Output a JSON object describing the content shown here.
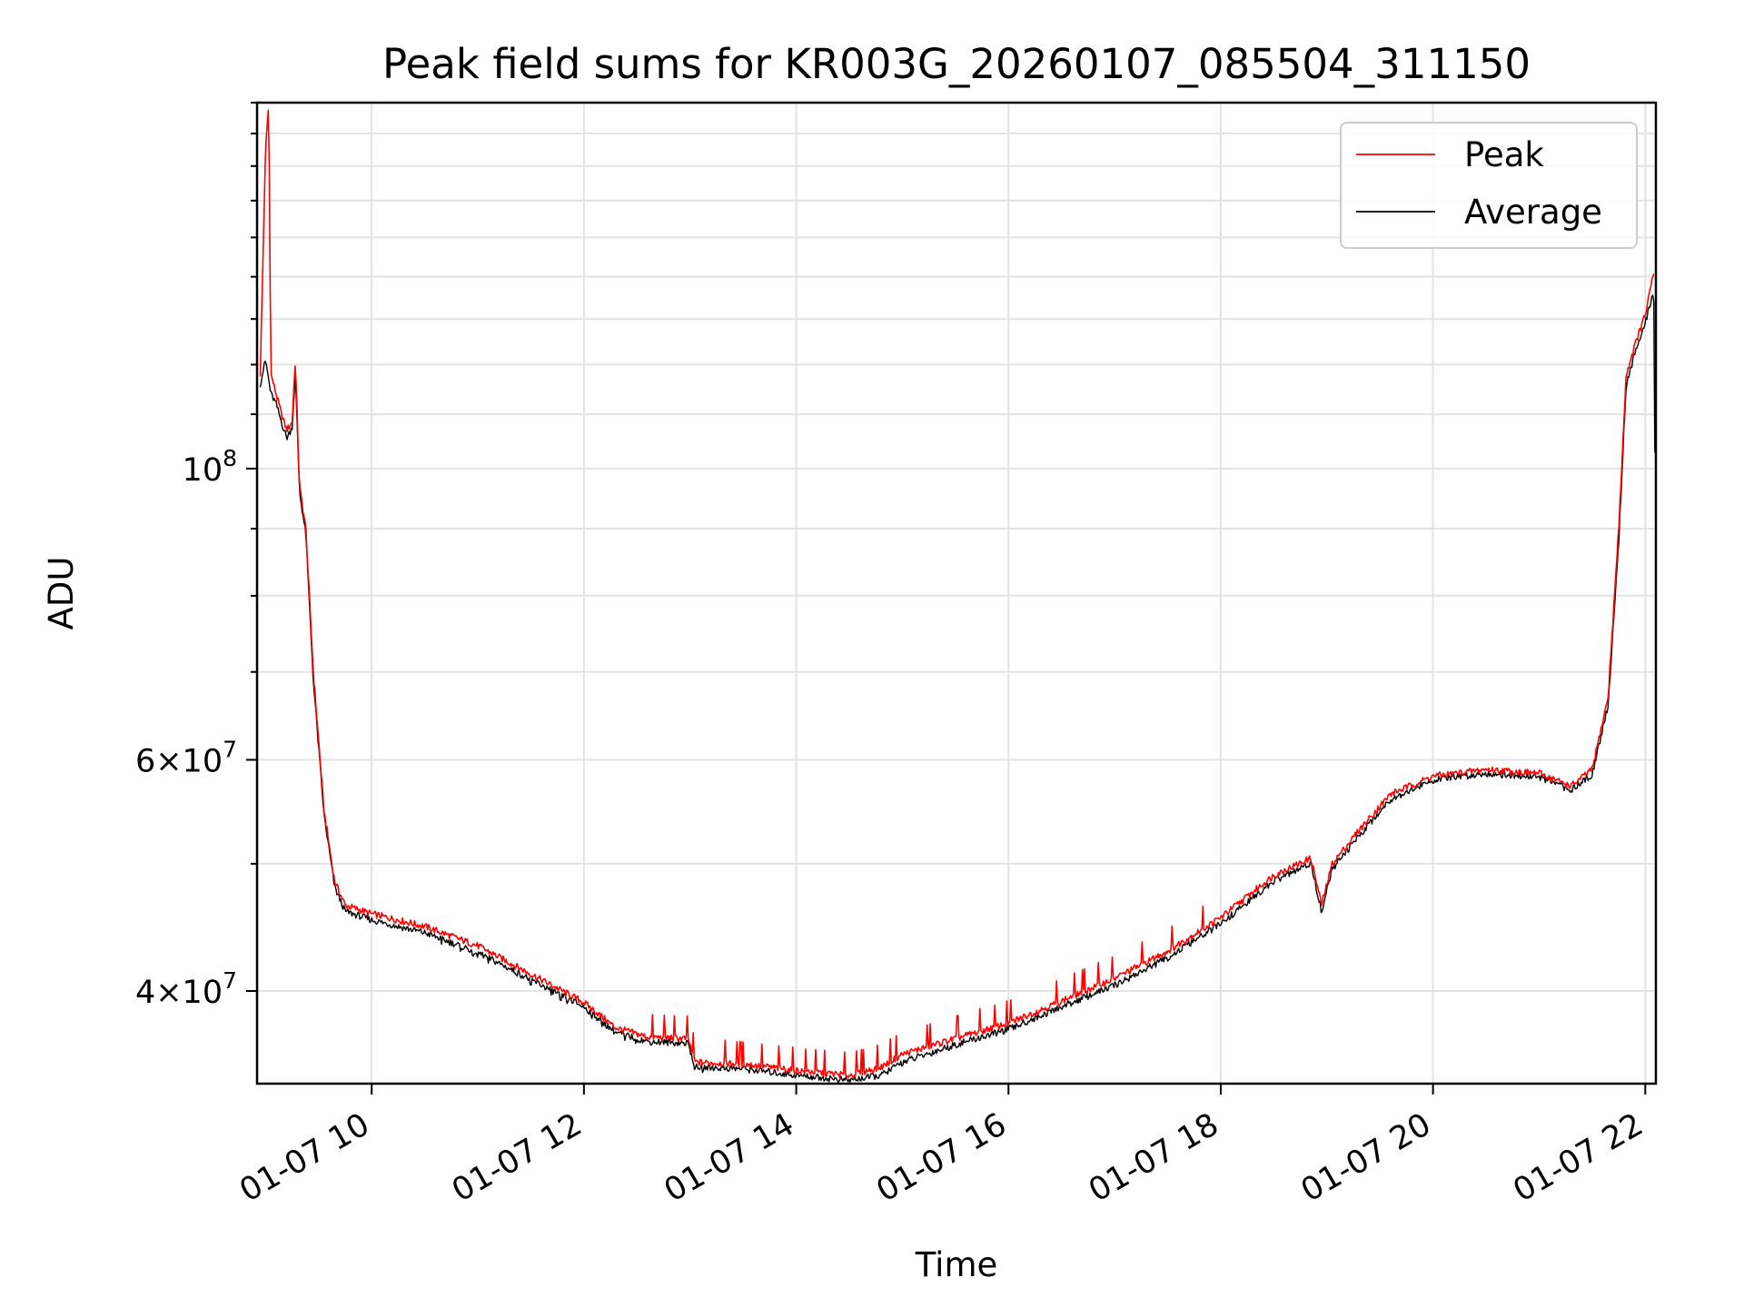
{
  "chart_data": {
    "type": "line",
    "title": "Peak field sums for KR003G_20260107_085504_311150",
    "xlabel": "Time",
    "ylabel": "ADU",
    "yscale": "log",
    "grid": true,
    "legend_position": "top-right",
    "xlim_hours": [
      8.92,
      22.1
    ],
    "ylim": [
      34000000,
      190000000
    ],
    "x_ticks": [
      {
        "hour": 10,
        "label": "01-07 10"
      },
      {
        "hour": 12,
        "label": "01-07 12"
      },
      {
        "hour": 14,
        "label": "01-07 14"
      },
      {
        "hour": 16,
        "label": "01-07 16"
      },
      {
        "hour": 18,
        "label": "01-07 18"
      },
      {
        "hour": 20,
        "label": "01-07 20"
      },
      {
        "hour": 22,
        "label": "01-07 22"
      }
    ],
    "y_ticks": [
      {
        "value": 40000000,
        "mantissa": "4",
        "exponent": "7"
      },
      {
        "value": 60000000,
        "mantissa": "6",
        "exponent": "7"
      },
      {
        "value": 100000000,
        "mantissa": "",
        "exponent": "8"
      }
    ],
    "series": [
      {
        "name": "Peak",
        "color": "#ff0000",
        "points": [
          [
            8.95,
            118000000
          ],
          [
            9.0,
            175000000
          ],
          [
            9.03,
            190000000
          ],
          [
            9.05,
            118000000
          ],
          [
            9.1,
            114000000
          ],
          [
            9.15,
            110000000
          ],
          [
            9.2,
            107000000
          ],
          [
            9.25,
            108500000
          ],
          [
            9.28,
            121000000
          ],
          [
            9.32,
            97000000
          ],
          [
            9.38,
            90000000
          ],
          [
            9.45,
            70000000
          ],
          [
            9.55,
            55000000
          ],
          [
            9.65,
            48500000
          ],
          [
            9.75,
            46500000
          ],
          [
            10.0,
            45800000
          ],
          [
            10.5,
            44800000
          ],
          [
            11.0,
            43300000
          ],
          [
            11.5,
            41200000
          ],
          [
            12.0,
            39200000
          ],
          [
            12.3,
            37500000
          ],
          [
            12.6,
            36900000
          ],
          [
            12.98,
            36800000
          ],
          [
            13.05,
            35300000
          ],
          [
            13.5,
            35200000
          ],
          [
            14.0,
            34800000
          ],
          [
            14.5,
            34500000
          ],
          [
            14.8,
            35000000
          ],
          [
            15.0,
            35800000
          ],
          [
            15.5,
            36800000
          ],
          [
            16.0,
            37800000
          ],
          [
            16.5,
            39300000
          ],
          [
            17.0,
            40900000
          ],
          [
            17.5,
            42900000
          ],
          [
            18.0,
            45500000
          ],
          [
            18.5,
            49000000
          ],
          [
            18.85,
            50500000
          ],
          [
            18.95,
            46500000
          ],
          [
            19.05,
            50000000
          ],
          [
            19.3,
            53000000
          ],
          [
            19.6,
            56500000
          ],
          [
            20.0,
            58300000
          ],
          [
            20.5,
            59000000
          ],
          [
            21.0,
            58600000
          ],
          [
            21.3,
            57300000
          ],
          [
            21.5,
            59000000
          ],
          [
            21.65,
            67000000
          ],
          [
            21.75,
            90000000
          ],
          [
            21.82,
            118000000
          ],
          [
            21.9,
            124000000
          ],
          [
            22.0,
            131000000
          ],
          [
            22.08,
            141000000
          ]
        ]
      },
      {
        "name": "Average",
        "color": "#000000",
        "points": [
          [
            8.95,
            116000000
          ],
          [
            9.0,
            121000000
          ],
          [
            9.05,
            114000000
          ],
          [
            9.1,
            112000000
          ],
          [
            9.15,
            108500000
          ],
          [
            9.2,
            105500000
          ],
          [
            9.25,
            107500000
          ],
          [
            9.28,
            118000000
          ],
          [
            9.32,
            96000000
          ],
          [
            9.38,
            89000000
          ],
          [
            9.45,
            69000000
          ],
          [
            9.55,
            54500000
          ],
          [
            9.65,
            48000000
          ],
          [
            9.75,
            46000000
          ],
          [
            10.0,
            45300000
          ],
          [
            10.5,
            44300000
          ],
          [
            11.0,
            42800000
          ],
          [
            11.5,
            40800000
          ],
          [
            12.0,
            38900000
          ],
          [
            12.3,
            37200000
          ],
          [
            12.6,
            36600000
          ],
          [
            12.98,
            36500000
          ],
          [
            13.05,
            35000000
          ],
          [
            13.5,
            34900000
          ],
          [
            14.0,
            34500000
          ],
          [
            14.5,
            34200000
          ],
          [
            14.8,
            34500000
          ],
          [
            15.0,
            35300000
          ],
          [
            15.5,
            36400000
          ],
          [
            16.0,
            37400000
          ],
          [
            16.5,
            38900000
          ],
          [
            17.0,
            40400000
          ],
          [
            17.5,
            42400000
          ],
          [
            18.0,
            45000000
          ],
          [
            18.5,
            48500000
          ],
          [
            18.85,
            50000000
          ],
          [
            18.95,
            46000000
          ],
          [
            19.05,
            49500000
          ],
          [
            19.3,
            52500000
          ],
          [
            19.6,
            56000000
          ],
          [
            20.0,
            57900000
          ],
          [
            20.5,
            58600000
          ],
          [
            21.0,
            58200000
          ],
          [
            21.3,
            56900000
          ],
          [
            21.5,
            58500000
          ],
          [
            21.65,
            66000000
          ],
          [
            21.75,
            88000000
          ],
          [
            21.82,
            116000000
          ],
          [
            21.9,
            122000000
          ],
          [
            22.0,
            129000000
          ],
          [
            22.08,
            137000000
          ],
          [
            22.09,
            103000000
          ]
        ]
      }
    ]
  }
}
